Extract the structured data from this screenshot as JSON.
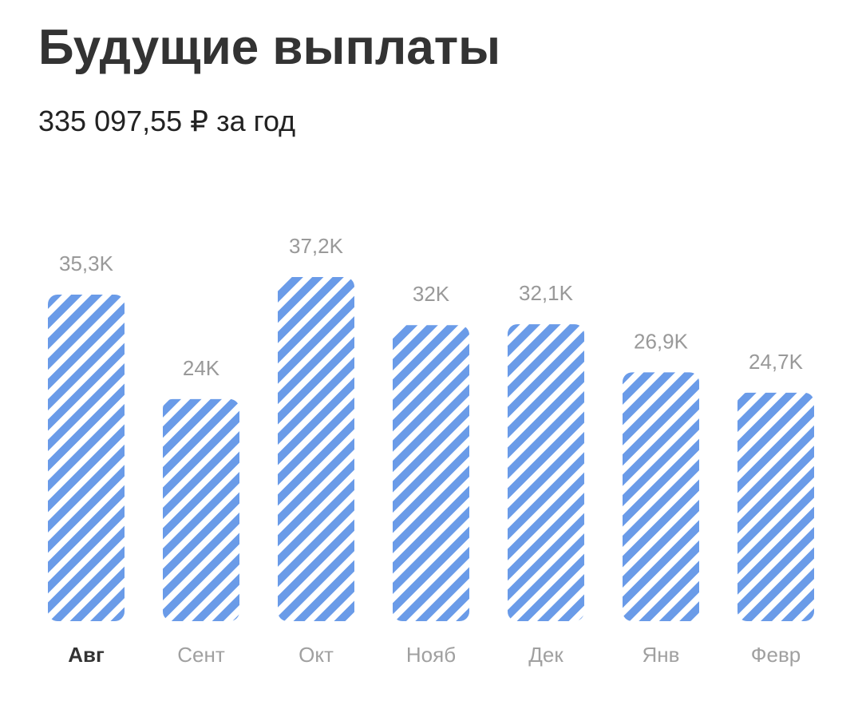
{
  "chart_data": {
    "type": "bar",
    "title": "Будущие выплаты",
    "subtitle": "335 097,55 ₽ за год",
    "categories": [
      "Авг",
      "Сент",
      "Окт",
      "Нояб",
      "Дек",
      "Янв",
      "Февр"
    ],
    "values": [
      35.3,
      24,
      37.2,
      32,
      32.1,
      26.9,
      24.7
    ],
    "value_labels": [
      "35,3K",
      "24K",
      "37,2K",
      "32K",
      "32,1K",
      "26,9K",
      "24,7K"
    ],
    "color": "#6a9be8",
    "selected": 0
  }
}
